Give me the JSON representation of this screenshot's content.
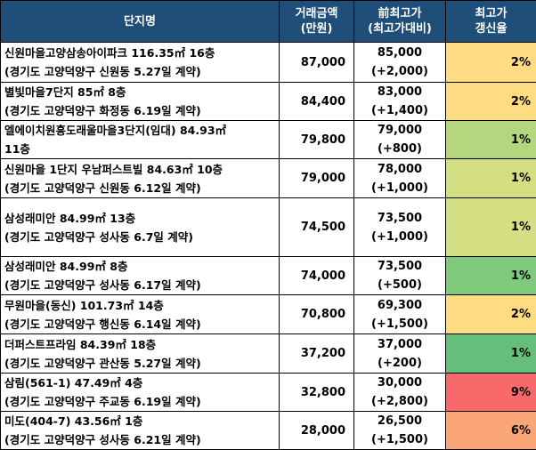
{
  "headers": {
    "name": "단지명",
    "price_line1": "거래금액",
    "price_line2": "(만원)",
    "max_line1": "前최고가",
    "max_line2": "(최고가대비)",
    "rate_line1": "최고가",
    "rate_line2": "갱신율"
  },
  "rows": [
    {
      "name1": "신원마을고양삼송아이파크 116.35㎡ 16층",
      "name2": "(경기도 고양덕양구 신원동 5.27일 계약)",
      "price": "87,000",
      "max": "85,000",
      "diff": "(+2,000)",
      "rate": "2%",
      "color": "#ffdb81"
    },
    {
      "name1": "별빛마을7단지 85㎡ 8층",
      "name2": "(경기도 고양덕양구 화정동 6.19일 계약)",
      "price": "84,400",
      "max": "83,000",
      "diff": "(+1,400)",
      "rate": "2%",
      "color": "#ffdb81"
    },
    {
      "name1": "엘에이치원흥도래울마을3단지(임대) 84.93㎡",
      "name2": "11층",
      "price": "79,800",
      "max": "79,000",
      "diff": "(+800)",
      "rate": "1%",
      "color": "#b4d67f"
    },
    {
      "name1": "신원마을 1단지 우남퍼스트빌 84.63㎡ 10층",
      "name2": "(경기도 고양덕양구 신원동 6.12일 계약)",
      "price": "79,000",
      "max": "78,000",
      "diff": "(+1,000)",
      "rate": "1%",
      "color": "#d3df82"
    },
    {
      "name1": "삼성래미안 84.99㎡ 13층",
      "name2": "(경기도 고양덕양구 성사동 6.7일 계약)",
      "price": "74,500",
      "max": "73,500",
      "diff": "(+1,000)",
      "rate": "1%",
      "color": "#d3df82"
    },
    {
      "name1": "삼성래미안 84.99㎡ 8층",
      "name2": "(경기도 고양덕양구 성사동 6.17일 계약)",
      "price": "74,000",
      "max": "73,500",
      "diff": "(+500)",
      "rate": "1%",
      "color": "#7ec97c"
    },
    {
      "name1": "무원마을(동신) 101.73㎡ 14층",
      "name2": "(경기도 고양덕양구 행신동 6.14일 계약)",
      "price": "70,800",
      "max": "69,300",
      "diff": "(+1,500)",
      "rate": "2%",
      "color": "#ffdb81"
    },
    {
      "name1": "더퍼스트프라임 84.39㎡ 18층",
      "name2": "(경기도 고양덕양구 관산동 5.27일 계약)",
      "price": "37,200",
      "max": "37,000",
      "diff": "(+200)",
      "rate": "1%",
      "color": "#66be7b"
    },
    {
      "name1": "삼림(561-1) 47.49㎡ 4층",
      "name2": "(경기도 고양덕양구 주교동 6.19일 계약)",
      "price": "32,800",
      "max": "30,000",
      "diff": "(+2,800)",
      "rate": "9%",
      "color": "#f8696b"
    },
    {
      "name1": "미도(404-7) 43.56㎡ 1층",
      "name2": "(경기도 고양덕양구 성사동 6.21일 계약)",
      "price": "28,000",
      "max": "26,500",
      "diff": "(+1,500)",
      "rate": "6%",
      "color": "#fba679"
    }
  ]
}
